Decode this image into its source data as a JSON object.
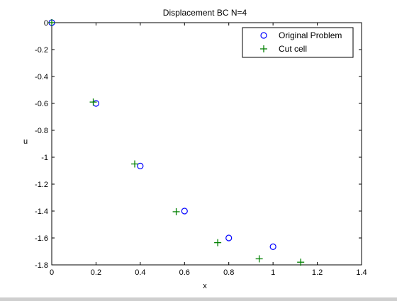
{
  "chart_data": {
    "type": "scatter",
    "title": "Displacement BC N=4",
    "xlabel": "x",
    "ylabel": "u",
    "xlim": [
      0,
      1.4
    ],
    "ylim": [
      -1.8,
      0
    ],
    "xticks": [
      0,
      0.2,
      0.4,
      0.6,
      0.8,
      1,
      1.2,
      1.4
    ],
    "xtick_labels": [
      "0",
      "0.2",
      "0.4",
      "0.6",
      "0.8",
      "1",
      "1.2",
      "1.4"
    ],
    "yticks": [
      0,
      -0.2,
      -0.4,
      -0.6,
      -0.8,
      -1,
      -1.2,
      -1.4,
      -1.6,
      -1.8
    ],
    "ytick_labels": [
      "0",
      "-0.2",
      "-0.4",
      "-0.6",
      "-0.8",
      "-1",
      "-1.2",
      "-1.4",
      "-1.6",
      "-1.8"
    ],
    "grid": false,
    "legend_position": "top-right",
    "series": [
      {
        "name": "Original Problem",
        "marker": "circle",
        "color": "#0000ff",
        "x": [
          0,
          0.2,
          0.4,
          0.6,
          0.8,
          1.0
        ],
        "y": [
          0,
          -0.6,
          -1.065,
          -1.4,
          -1.6,
          -1.665
        ]
      },
      {
        "name": "Cut cell",
        "marker": "plus",
        "color": "#008000",
        "x": [
          0,
          0.1875,
          0.375,
          0.5625,
          0.75,
          0.9375,
          1.125
        ],
        "y": [
          0,
          -0.59,
          -1.05,
          -1.405,
          -1.635,
          -1.755,
          -1.78
        ]
      }
    ]
  }
}
